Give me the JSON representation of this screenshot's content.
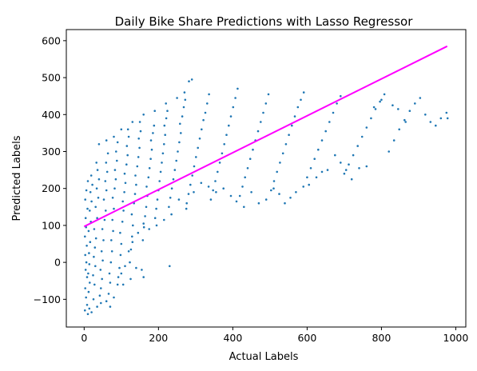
{
  "chart_data": {
    "type": "scatter",
    "title": "Daily Bike Share Predictions with Lasso Regressor",
    "xlabel": "Actual Labels",
    "ylabel": "Predicted Labels",
    "xlim": [
      -48,
      1027
    ],
    "ylim": [
      -175,
      630
    ],
    "xticks": [
      0,
      200,
      400,
      600,
      800,
      1000
    ],
    "yticks": [
      -100,
      0,
      100,
      200,
      300,
      400,
      500,
      600
    ],
    "grid": false,
    "legend": "none",
    "series": [
      {
        "kind": "scatter",
        "color": "#1f77b4",
        "points": [
          [
            2,
            -130
          ],
          [
            5,
            -95
          ],
          [
            3,
            -70
          ],
          [
            8,
            -40
          ],
          [
            4,
            -20
          ],
          [
            6,
            0
          ],
          [
            3,
            20
          ],
          [
            7,
            45
          ],
          [
            2,
            70
          ],
          [
            5,
            95
          ],
          [
            4,
            120
          ],
          [
            9,
            145
          ],
          [
            3,
            170
          ],
          [
            6,
            195
          ],
          [
            10,
            220
          ],
          [
            8,
            -115
          ],
          [
            12,
            -80
          ],
          [
            15,
            -55
          ],
          [
            11,
            -30
          ],
          [
            14,
            -5
          ],
          [
            13,
            25
          ],
          [
            16,
            55
          ],
          [
            12,
            85
          ],
          [
            18,
            110
          ],
          [
            15,
            140
          ],
          [
            20,
            165
          ],
          [
            17,
            190
          ],
          [
            22,
            210
          ],
          [
            19,
            235
          ],
          [
            14,
            -125
          ],
          [
            25,
            -100
          ],
          [
            28,
            -60
          ],
          [
            24,
            -35
          ],
          [
            30,
            -10
          ],
          [
            26,
            15
          ],
          [
            29,
            40
          ],
          [
            32,
            65
          ],
          [
            27,
            90
          ],
          [
            35,
            120
          ],
          [
            31,
            150
          ],
          [
            38,
            175
          ],
          [
            34,
            200
          ],
          [
            40,
            225
          ],
          [
            36,
            250
          ],
          [
            33,
            270
          ],
          [
            42,
            -90
          ],
          [
            45,
            -70
          ],
          [
            48,
            -45
          ],
          [
            44,
            -20
          ],
          [
            50,
            5
          ],
          [
            47,
            30
          ],
          [
            52,
            60
          ],
          [
            49,
            90
          ],
          [
            55,
            115
          ],
          [
            58,
            140
          ],
          [
            53,
            170
          ],
          [
            60,
            195
          ],
          [
            57,
            220
          ],
          [
            62,
            245
          ],
          [
            59,
            270
          ],
          [
            64,
            295
          ],
          [
            66,
            -85
          ],
          [
            70,
            -55
          ],
          [
            68,
            -30
          ],
          [
            72,
            0
          ],
          [
            75,
            30
          ],
          [
            73,
            60
          ],
          [
            78,
            85
          ],
          [
            76,
            115
          ],
          [
            80,
            145
          ],
          [
            77,
            175
          ],
          [
            82,
            200
          ],
          [
            85,
            225
          ],
          [
            83,
            250
          ],
          [
            88,
            275
          ],
          [
            86,
            300
          ],
          [
            90,
            325
          ],
          [
            92,
            -40
          ],
          [
            95,
            -15
          ],
          [
            98,
            20
          ],
          [
            100,
            50
          ],
          [
            97,
            80
          ],
          [
            103,
            110
          ],
          [
            106,
            140
          ],
          [
            104,
            165
          ],
          [
            108,
            190
          ],
          [
            111,
            215
          ],
          [
            109,
            240
          ],
          [
            114,
            265
          ],
          [
            117,
            290
          ],
          [
            115,
            315
          ],
          [
            120,
            340
          ],
          [
            118,
            360
          ],
          [
            123,
            0
          ],
          [
            126,
            35
          ],
          [
            129,
            70
          ],
          [
            131,
            100
          ],
          [
            128,
            130
          ],
          [
            134,
            160
          ],
          [
            137,
            185
          ],
          [
            140,
            210
          ],
          [
            138,
            235
          ],
          [
            143,
            260
          ],
          [
            146,
            285
          ],
          [
            149,
            310
          ],
          [
            147,
            335
          ],
          [
            152,
            355
          ],
          [
            150,
            380
          ],
          [
            155,
            -20
          ],
          [
            158,
            60
          ],
          [
            161,
            95
          ],
          [
            164,
            125
          ],
          [
            167,
            150
          ],
          [
            170,
            180
          ],
          [
            168,
            205
          ],
          [
            173,
            230
          ],
          [
            176,
            255
          ],
          [
            179,
            280
          ],
          [
            182,
            305
          ],
          [
            180,
            330
          ],
          [
            185,
            350
          ],
          [
            188,
            370
          ],
          [
            191,
            120
          ],
          [
            194,
            145
          ],
          [
            197,
            170
          ],
          [
            200,
            195
          ],
          [
            203,
            220
          ],
          [
            206,
            245
          ],
          [
            209,
            270
          ],
          [
            212,
            295
          ],
          [
            215,
            320
          ],
          [
            218,
            345
          ],
          [
            216,
            370
          ],
          [
            221,
            390
          ],
          [
            224,
            410
          ],
          [
            228,
            150
          ],
          [
            232,
            175
          ],
          [
            236,
            200
          ],
          [
            240,
            225
          ],
          [
            244,
            250
          ],
          [
            248,
            275
          ],
          [
            252,
            300
          ],
          [
            256,
            325
          ],
          [
            260,
            350
          ],
          [
            258,
            375
          ],
          [
            264,
            395
          ],
          [
            268,
            420
          ],
          [
            272,
            440
          ],
          [
            276,
            160
          ],
          [
            281,
            185
          ],
          [
            286,
            210
          ],
          [
            291,
            235
          ],
          [
            296,
            260
          ],
          [
            301,
            285
          ],
          [
            306,
            310
          ],
          [
            311,
            335
          ],
          [
            316,
            360
          ],
          [
            321,
            385
          ],
          [
            326,
            405
          ],
          [
            331,
            430
          ],
          [
            336,
            455
          ],
          [
            282,
            490
          ],
          [
            290,
            495
          ],
          [
            341,
            170
          ],
          [
            347,
            195
          ],
          [
            353,
            220
          ],
          [
            359,
            245
          ],
          [
            365,
            270
          ],
          [
            371,
            295
          ],
          [
            377,
            320
          ],
          [
            383,
            345
          ],
          [
            389,
            370
          ],
          [
            395,
            395
          ],
          [
            401,
            420
          ],
          [
            407,
            445
          ],
          [
            413,
            470
          ],
          [
            419,
            180
          ],
          [
            426,
            205
          ],
          [
            433,
            230
          ],
          [
            440,
            255
          ],
          [
            447,
            280
          ],
          [
            454,
            305
          ],
          [
            461,
            330
          ],
          [
            468,
            355
          ],
          [
            475,
            380
          ],
          [
            482,
            405
          ],
          [
            489,
            430
          ],
          [
            496,
            455
          ],
          [
            503,
            195
          ],
          [
            511,
            220
          ],
          [
            519,
            245
          ],
          [
            527,
            270
          ],
          [
            535,
            295
          ],
          [
            543,
            320
          ],
          [
            551,
            345
          ],
          [
            559,
            370
          ],
          [
            567,
            395
          ],
          [
            575,
            420
          ],
          [
            583,
            440
          ],
          [
            591,
            460
          ],
          [
            600,
            230
          ],
          [
            610,
            255
          ],
          [
            620,
            280
          ],
          [
            630,
            305
          ],
          [
            640,
            330
          ],
          [
            650,
            355
          ],
          [
            660,
            380
          ],
          [
            670,
            405
          ],
          [
            680,
            430
          ],
          [
            690,
            450
          ],
          [
            700,
            240
          ],
          [
            712,
            265
          ],
          [
            724,
            290
          ],
          [
            736,
            315
          ],
          [
            748,
            340
          ],
          [
            760,
            365
          ],
          [
            772,
            390
          ],
          [
            784,
            415
          ],
          [
            796,
            435
          ],
          [
            808,
            455
          ],
          [
            820,
            300
          ],
          [
            834,
            330
          ],
          [
            848,
            360
          ],
          [
            862,
            385
          ],
          [
            876,
            410
          ],
          [
            890,
            430
          ],
          [
            904,
            445
          ],
          [
            918,
            400
          ],
          [
            932,
            380
          ],
          [
            946,
            370
          ],
          [
            960,
            390
          ],
          [
            975,
            405
          ],
          [
            978,
            390
          ],
          [
            865,
            380
          ],
          [
            845,
            415
          ],
          [
            830,
            425
          ],
          [
            800,
            440
          ],
          [
            780,
            420
          ],
          [
            760,
            260
          ],
          [
            740,
            255
          ],
          [
            720,
            225
          ],
          [
            705,
            250
          ],
          [
            690,
            270
          ],
          [
            675,
            290
          ],
          [
            655,
            250
          ],
          [
            640,
            245
          ],
          [
            625,
            230
          ],
          [
            605,
            210
          ],
          [
            590,
            205
          ],
          [
            570,
            190
          ],
          [
            555,
            175
          ],
          [
            540,
            160
          ],
          [
            525,
            185
          ],
          [
            510,
            200
          ],
          [
            490,
            170
          ],
          [
            470,
            160
          ],
          [
            450,
            190
          ],
          [
            430,
            150
          ],
          [
            410,
            165
          ],
          [
            395,
            180
          ],
          [
            375,
            200
          ],
          [
            355,
            190
          ],
          [
            335,
            205
          ],
          [
            315,
            215
          ],
          [
            295,
            190
          ],
          [
            275,
            145
          ],
          [
            255,
            170
          ],
          [
            235,
            130
          ],
          [
            215,
            115
          ],
          [
            195,
            100
          ],
          [
            175,
            90
          ],
          [
            160,
            105
          ],
          [
            145,
            80
          ],
          [
            130,
            55
          ],
          [
            120,
            30
          ],
          [
            110,
            -10
          ],
          [
            100,
            -30
          ],
          [
            90,
            -60
          ],
          [
            80,
            -95
          ],
          [
            70,
            -120
          ],
          [
            60,
            -105
          ],
          [
            45,
            -110
          ],
          [
            35,
            -120
          ],
          [
            20,
            -135
          ],
          [
            10,
            -140
          ],
          [
            40,
            320
          ],
          [
            60,
            330
          ],
          [
            80,
            340
          ],
          [
            100,
            360
          ],
          [
            130,
            380
          ],
          [
            160,
            400
          ],
          [
            190,
            410
          ],
          [
            220,
            430
          ],
          [
            250,
            445
          ],
          [
            270,
            460
          ],
          [
            230,
            -10
          ],
          [
            160,
            -40
          ],
          [
            140,
            -15
          ],
          [
            125,
            -45
          ],
          [
            105,
            -60
          ]
        ]
      },
      {
        "kind": "line",
        "name": "",
        "color": "#ff00ff",
        "x": [
          0,
          977
        ],
        "y": [
          97,
          585
        ]
      }
    ]
  }
}
